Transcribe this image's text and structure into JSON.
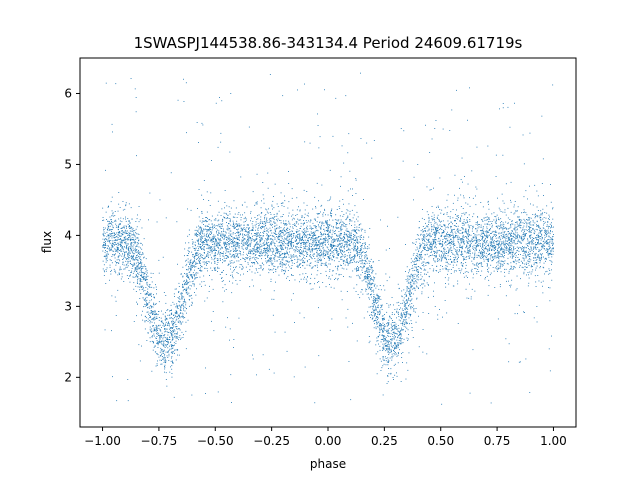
{
  "chart_data": {
    "type": "scatter",
    "title": "1SWASPJ144538.86-343134.4 Period 24609.61719s",
    "xlabel": "phase",
    "ylabel": "flux",
    "xlim": [
      -1.1,
      1.1
    ],
    "ylim": [
      1.3,
      6.5
    ],
    "xticks": [
      -1.0,
      -0.75,
      -0.5,
      -0.25,
      0.0,
      0.25,
      0.5,
      0.75,
      1.0
    ],
    "xtick_labels": [
      "−1.00",
      "−0.75",
      "−0.50",
      "−0.25",
      "0.00",
      "0.25",
      "0.50",
      "0.75",
      "1.00"
    ],
    "yticks": [
      2,
      3,
      4,
      5,
      6
    ],
    "ytick_labels": [
      "2",
      "3",
      "4",
      "5",
      "6"
    ],
    "grid": false,
    "marker_color": "#1f77b4",
    "series": [
      {
        "phase_range": [
          -1.0,
          1.0
        ],
        "baseline_flux": 3.9,
        "baseline_scatter": 0.22,
        "eclipses": [
          {
            "center_phase": -0.72,
            "min_flux": 2.5,
            "half_width": 0.17
          },
          {
            "center_phase": 0.28,
            "min_flux": 2.5,
            "half_width": 0.17
          }
        ],
        "outlier_flux_range": [
          1.6,
          6.3
        ]
      }
    ]
  }
}
